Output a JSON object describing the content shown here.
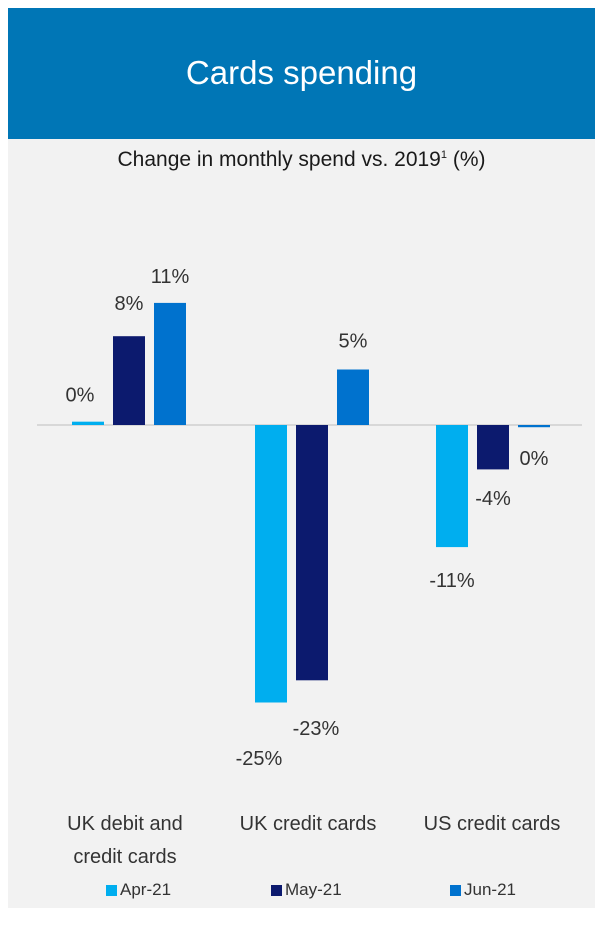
{
  "header": {
    "title": "Cards spending"
  },
  "subtitle": {
    "text": "Change in monthly spend vs. 2019",
    "footnote": "1",
    "unit": "(%)"
  },
  "colors": {
    "header_bg": "#0076b6",
    "panel_bg": "#f2f2f2"
  },
  "chart_data": {
    "type": "bar",
    "categories": [
      {
        "line1": "UK debit and",
        "line2": "credit cards"
      },
      {
        "line1": "UK credit cards",
        "line2": ""
      },
      {
        "line1": "US credit cards",
        "line2": ""
      }
    ],
    "series": [
      {
        "name": "Apr-21",
        "color": "#00aeef",
        "values": [
          0.3,
          -25,
          -11
        ],
        "labels": [
          "0%",
          "-25%",
          "-11%"
        ]
      },
      {
        "name": "May-21",
        "color": "#0c1a6e",
        "values": [
          8,
          -23,
          -4
        ],
        "labels": [
          "8%",
          "-23%",
          "-4%"
        ]
      },
      {
        "name": "Jun-21",
        "color": "#0072ce",
        "values": [
          11,
          5,
          -0.2
        ],
        "labels": [
          "11%",
          "5%",
          "0%"
        ]
      }
    ],
    "legend_position": "bottom",
    "grid": false
  }
}
